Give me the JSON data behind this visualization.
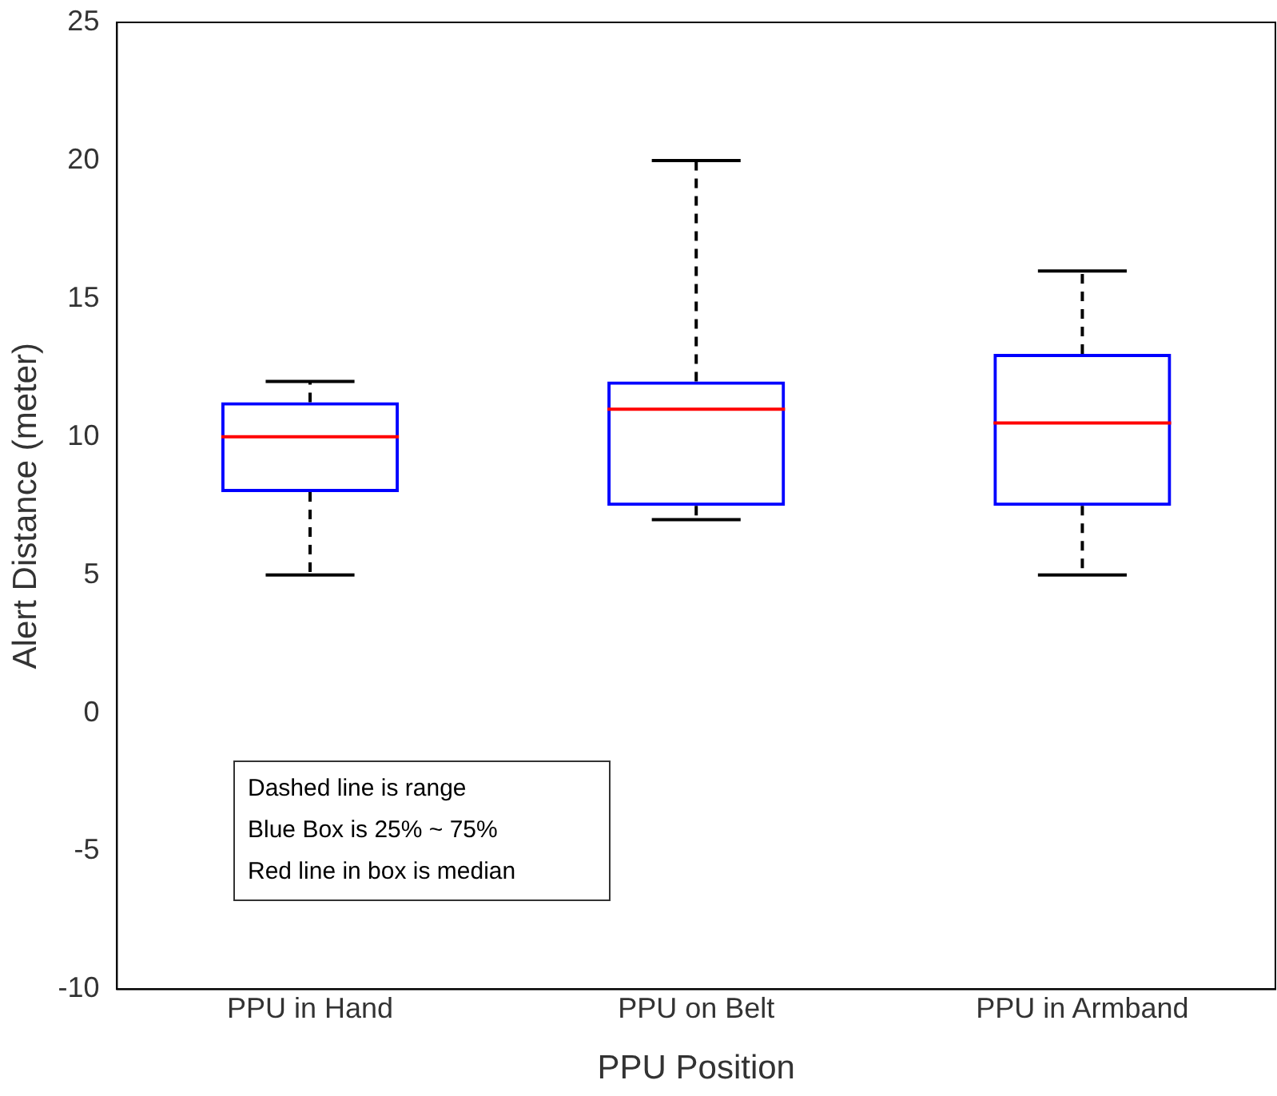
{
  "chart_data": {
    "type": "box",
    "xlabel": "PPU Position",
    "ylabel": "Alert Distance (meter)",
    "categories": [
      "PPU in Hand",
      "PPU on Belt",
      "PPU in Armband"
    ],
    "ylim": [
      -10,
      25
    ],
    "yticks": [
      -10,
      -5,
      0,
      5,
      10,
      15,
      20,
      25
    ],
    "grid": false,
    "legend": false,
    "series": [
      {
        "color": "#0000ff",
        "boxes": [
          {
            "low": 5,
            "q1": 8,
            "median": 10,
            "q3": 11.25,
            "high": 12
          },
          {
            "low": 7,
            "q1": 7.5,
            "median": 11,
            "q3": 12,
            "high": 20
          },
          {
            "low": 5,
            "q1": 7.5,
            "median": 10.5,
            "q3": 13,
            "high": 16
          }
        ]
      }
    ],
    "annotations": [
      "Dashed line is range",
      "Blue Box is 25% ~ 75%",
      "Red line in box is median"
    ]
  }
}
